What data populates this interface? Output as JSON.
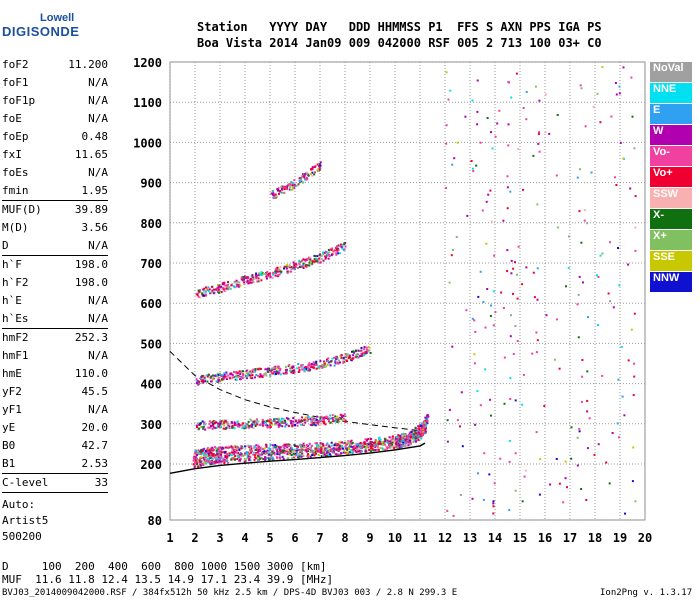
{
  "logo": {
    "top": "Lowell",
    "bottom": "DIGISONDE"
  },
  "header": {
    "line1": "Station   YYYY DAY   DDD HHMMSS P1  FFS S AXN PPS IGA PS",
    "line2": "Boa Vista 2014 Jan09 009 042000 RSF 005 2 713 100 03+ C0"
  },
  "params": [
    {
      "name": "foF2",
      "value": "11.200"
    },
    {
      "name": "foF1",
      "value": "N/A"
    },
    {
      "name": "foF1p",
      "value": "N/A"
    },
    {
      "name": "foE",
      "value": "N/A"
    },
    {
      "name": "foEp",
      "value": "0.48"
    },
    {
      "name": "fxI",
      "value": "11.65"
    },
    {
      "name": "foEs",
      "value": "N/A"
    },
    {
      "name": "fmin",
      "value": "1.95"
    },
    {
      "name": "MUF(D)",
      "value": "39.89"
    },
    {
      "name": "M(D)",
      "value": "3.56"
    },
    {
      "name": "D",
      "value": "N/A"
    },
    {
      "name": "h`F",
      "value": "198.0"
    },
    {
      "name": "h`F2",
      "value": "198.0"
    },
    {
      "name": "h`E",
      "value": "N/A"
    },
    {
      "name": "h`Es",
      "value": "N/A"
    },
    {
      "name": "hmF2",
      "value": "252.3"
    },
    {
      "name": "hmF1",
      "value": "N/A"
    },
    {
      "name": "hmE",
      "value": "110.0"
    },
    {
      "name": "yF2",
      "value": "45.5"
    },
    {
      "name": "yF1",
      "value": "N/A"
    },
    {
      "name": "yE",
      "value": "20.0"
    },
    {
      "name": "B0",
      "value": "42.7"
    },
    {
      "name": "B1",
      "value": "2.53"
    },
    {
      "name": "C-level",
      "value": "33"
    }
  ],
  "auto": [
    "Auto:",
    "Artist5",
    "500200"
  ],
  "legend": [
    {
      "label": "NoVal",
      "color": "#a0a0a0"
    },
    {
      "label": "NNE",
      "color": "#00e0f0"
    },
    {
      "label": "E",
      "color": "#30a0f0"
    },
    {
      "label": "W",
      "color": "#b000b0"
    },
    {
      "label": "Vo-",
      "color": "#f040a0"
    },
    {
      "label": "Vo+",
      "color": "#f00030"
    },
    {
      "label": "SSW",
      "color": "#f8b0b0"
    },
    {
      "label": "X-",
      "color": "#107010"
    },
    {
      "label": "X+",
      "color": "#80c060"
    },
    {
      "label": "SSE",
      "color": "#c8c800"
    },
    {
      "label": "NNW",
      "color": "#1010d0"
    }
  ],
  "footer": {
    "d_line": "D     100  200  400  600  800 1000 1500 3000 [km]",
    "muf_line": "MUF  11.6 11.8 12.4 13.5 14.9 17.1 23.4 39.9 [MHz]",
    "file_line": "BVJ03_2014009042000.RSF / 384fx512h 50 kHz 2.5 km / DPS-4D BVJ03 003 / 2.8 N 299.3 E",
    "version": "Ion2Png v. 1.3.17"
  },
  "chart_data": {
    "type": "scatter",
    "xlim": [
      1,
      20
    ],
    "ylim": [
      80,
      1200
    ],
    "x_ticks": [
      1,
      2,
      3,
      4,
      5,
      6,
      7,
      8,
      9,
      10,
      11,
      12,
      13,
      14,
      15,
      16,
      17,
      18,
      19,
      20
    ],
    "y_ticks": [
      80,
      200,
      300,
      400,
      500,
      600,
      700,
      800,
      900,
      1000,
      1100,
      1200
    ],
    "grid": true,
    "legend_position": "right",
    "traces": [
      {
        "x": [
          1.9,
          2.5,
          3,
          4,
          5,
          6,
          7,
          8,
          9,
          10,
          10.5,
          11,
          11.2
        ],
        "y": [
          205,
          212,
          215,
          220,
          224,
          228,
          232,
          238,
          245,
          252,
          260,
          275,
          290
        ]
      },
      {
        "x": [
          1.9,
          2.5,
          3,
          4,
          5,
          6,
          7,
          8,
          9,
          10,
          10.5,
          11,
          11.3
        ],
        "y": [
          225,
          232,
          235,
          238,
          240,
          242,
          244,
          248,
          255,
          262,
          270,
          290,
          320
        ]
      },
      {
        "x": [
          2,
          3,
          4,
          5,
          6,
          7,
          8,
          9
        ],
        "y": [
          410,
          418,
          425,
          432,
          440,
          450,
          465,
          490
        ]
      },
      {
        "x": [
          2,
          3,
          4,
          5,
          6,
          7,
          8
        ],
        "y": [
          625,
          640,
          660,
          675,
          695,
          715,
          745
        ]
      },
      {
        "x": [
          5,
          6,
          7
        ],
        "y": [
          870,
          900,
          945
        ]
      },
      {
        "x": [
          2,
          3,
          4,
          5,
          6,
          7,
          8
        ],
        "y": [
          298,
          300,
          302,
          304,
          307,
          310,
          318
        ]
      }
    ],
    "profile_curve": {
      "x": [
        1,
        2,
        3,
        4,
        5,
        6,
        7,
        8,
        9,
        10,
        10.5,
        11,
        11.2
      ],
      "y": [
        180,
        190,
        197,
        202,
        207,
        211,
        216,
        221,
        227,
        235,
        240,
        245,
        252
      ]
    },
    "dashed_curve": {
      "x": [
        1,
        2,
        3,
        4,
        5,
        6,
        7,
        8,
        9,
        10,
        11
      ],
      "y": [
        480,
        420,
        385,
        360,
        342,
        328,
        316,
        306,
        298,
        290,
        283
      ]
    }
  }
}
